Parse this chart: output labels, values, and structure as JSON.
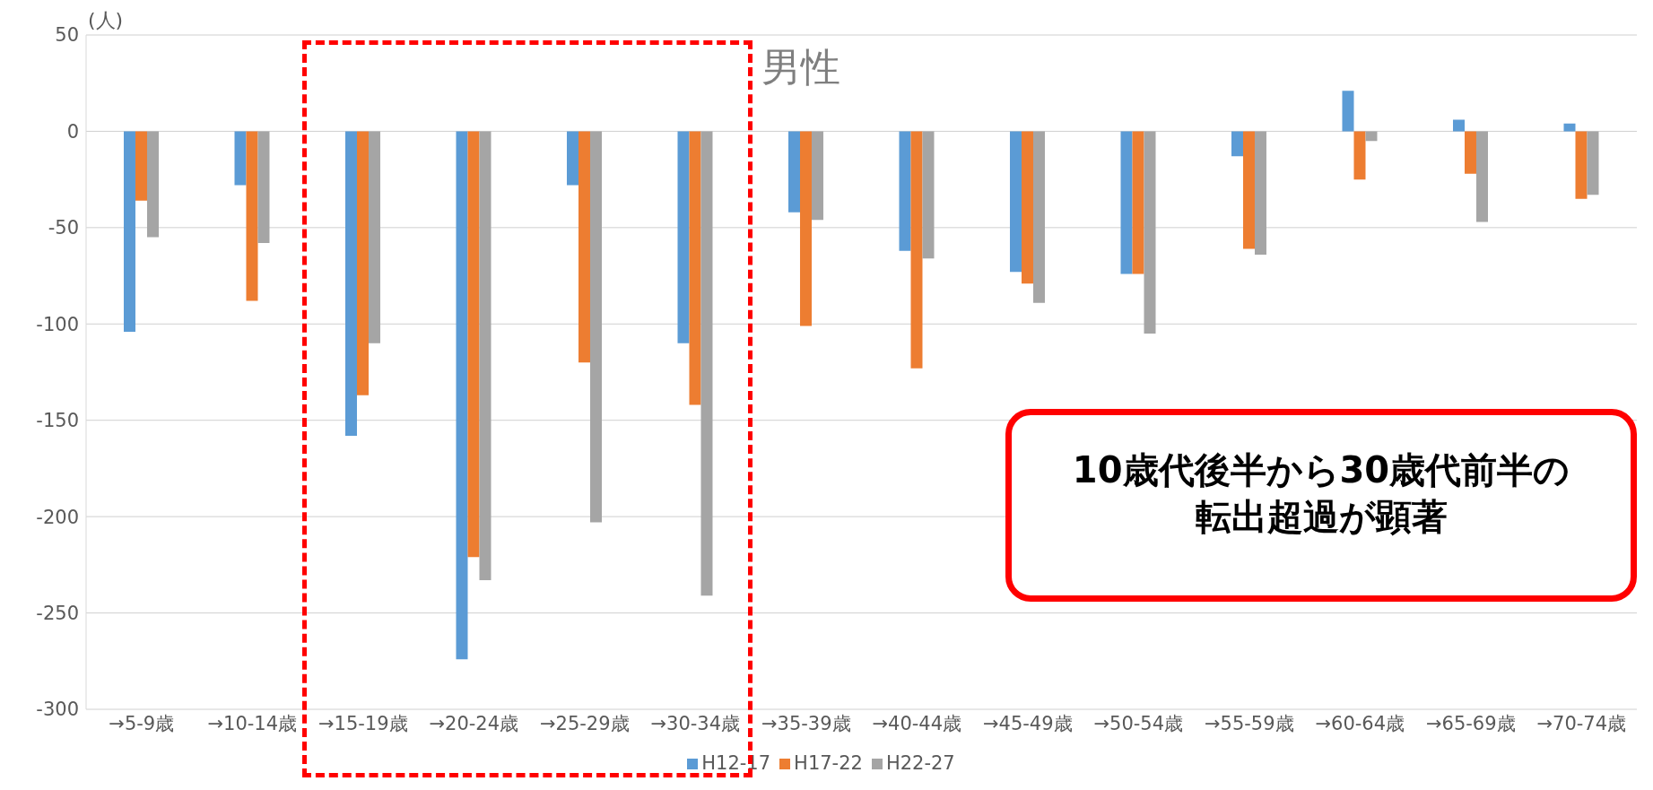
{
  "chart_data": {
    "type": "bar",
    "ylabel": "(人)",
    "categories": [
      "→5-9歳",
      "→10-14歳",
      "→15-19歳",
      "→20-24歳",
      "→25-29歳",
      "→30-34歳",
      "→35-39歳",
      "→40-44歳",
      "→45-49歳",
      "→50-54歳",
      "→55-59歳",
      "→60-64歳",
      "→65-69歳",
      "→70-74歳"
    ],
    "series": [
      {
        "name": "H12-17",
        "color": "#5b9bd5",
        "values": [
          -104,
          -28,
          -158,
          -274,
          -28,
          -110,
          -42,
          -62,
          -73,
          -74,
          -13,
          21,
          6,
          4
        ]
      },
      {
        "name": "H17-22",
        "color": "#ed7d31",
        "values": [
          -36,
          -88,
          -137,
          -221,
          -120,
          -142,
          -101,
          -123,
          -79,
          -74,
          -61,
          -25,
          -22,
          -35
        ]
      },
      {
        "name": "H22-27",
        "color": "#a5a5a5",
        "values": [
          -55,
          -58,
          -110,
          -233,
          -203,
          -241,
          -46,
          -66,
          -89,
          -105,
          -64,
          -5,
          -47,
          -33
        ]
      }
    ],
    "ylim": [
      -300,
      50
    ],
    "yticks": [
      -300,
      -250,
      -200,
      -150,
      -100,
      -50,
      0,
      50
    ],
    "grid": "y",
    "legend": "bottom",
    "annotations": [
      "男性",
      "10歳代後半から30歳代前半の",
      "転出超過が顕著"
    ]
  }
}
